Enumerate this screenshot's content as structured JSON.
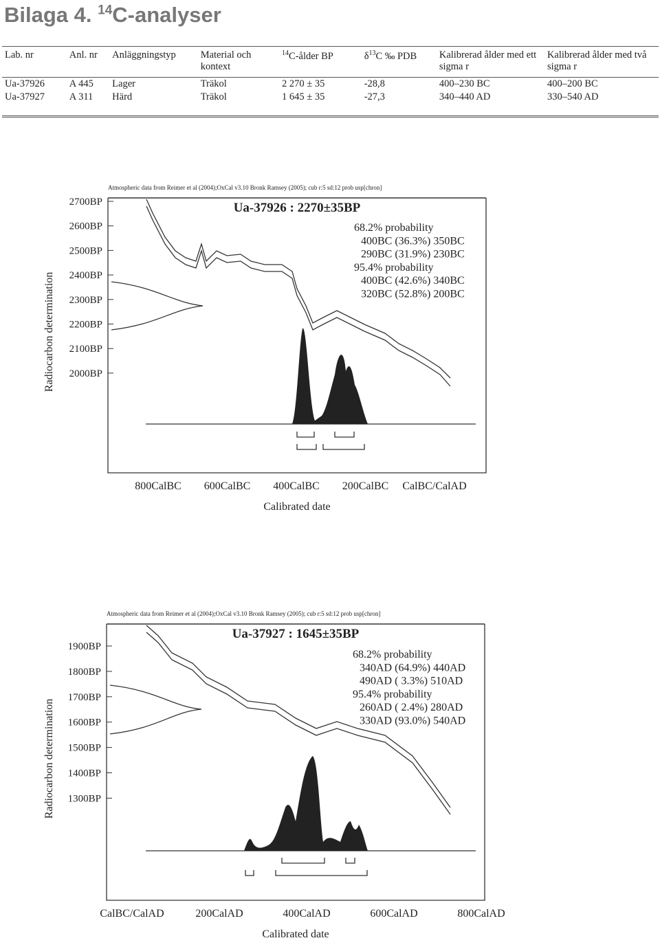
{
  "header": {
    "title_prefix": "Bilaga 4.",
    "title_sup": "14",
    "title_suffix": "C-analyser"
  },
  "table": {
    "headers": [
      "Lab. nr",
      "Anl. nr",
      "Anläggningstyp",
      "Material och kontext",
      {
        "sup": "14",
        "text": "C-ålder BP"
      },
      {
        "pre": "δ",
        "sup": "13",
        "text": "C ‰ PDB"
      },
      "Kalibrerad ålder med ett sigma r",
      "Kalibrerad ålder med två sigma r"
    ],
    "rows": [
      [
        "Ua-37926",
        "A 445",
        "Lager",
        "Träkol",
        "2 270 ± 35",
        "-28,8",
        "400–230 BC",
        "400–200 BC"
      ],
      [
        "Ua-37927",
        "A 311",
        "Härd",
        "Träkol",
        "1 645 ± 35",
        "-27,3",
        "340–440 AD",
        "330–540 AD"
      ]
    ]
  },
  "plots": [
    {
      "note": "Atmospheric data from Reimer et al (2004);OxCal v3.10 Bronk Ramsey (2005); cub r:5 sd:12 prob usp[chron]",
      "title": "Ua-37926 : 2270±35BP",
      "lines": [
        "68.2% probability",
        "400BC (36.3%) 350BC",
        "290BC (31.9%) 230BC",
        "95.4% probability",
        "400BC (42.6%) 340BC",
        "320BC (52.8%) 200BC"
      ],
      "yticks": [
        "2700BP",
        "2600BP",
        "2500BP",
        "2400BP",
        "2300BP",
        "2200BP",
        "2100BP",
        "2000BP"
      ],
      "ylabel": "Radiocarbon determination",
      "xticks": [
        "800CalBC",
        "600CalBC",
        "400CalBC",
        "200CalBC",
        "CalBC/CalAD"
      ],
      "xlabel": "Calibrated date"
    },
    {
      "note": "Atmospheric data from Reimer et al (2004);OxCal v3.10 Bronk Ramsey (2005); cub r:5 sd:12 prob usp[chron]",
      "title": "Ua-37927 : 1645±35BP",
      "lines": [
        "68.2% probability",
        "340AD (64.9%) 440AD",
        "490AD ( 3.3%) 510AD",
        "95.4% probability",
        "260AD ( 2.4%) 280AD",
        "330AD (93.0%) 540AD"
      ],
      "yticks": [
        "1900BP",
        "1800BP",
        "1700BP",
        "1600BP",
        "1500BP",
        "1400BP",
        "1300BP"
      ],
      "ylabel": "Radiocarbon determination",
      "xticks": [
        "CalBC/CalAD",
        "200CalAD",
        "400CalAD",
        "600CalAD",
        "800CalAD"
      ],
      "xlabel": "Calibrated date"
    }
  ]
}
